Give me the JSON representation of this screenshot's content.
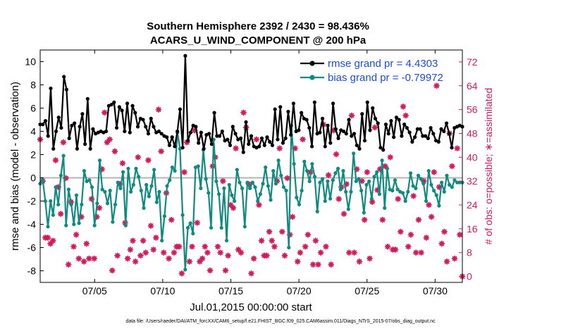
{
  "chart_data": {
    "type": "line",
    "title": "Southern Hemisphere 2392 / 2430 = 98.436%",
    "subtitle": "ACARS_U_WIND_COMPONENT @ 200 hPa",
    "xlabel": "Jul.01,2015 00:00:00 start",
    "ylabel": "rmse and bias (model - observation)",
    "ylabel_right": "# of obs: o=possible; ∗=assimilated",
    "footnote": "data file: /Users/raeder/DAI/ATM_forcXX/CAM6_setup/f.e21.FHIST_BGC.f09_025.CAM6assim.011/Diags_NTrS_2015-07/obs_diag_output.nc",
    "x_range": [
      1.0,
      32.0
    ],
    "ylim": [
      -9,
      11
    ],
    "ylim_right": [
      -2,
      76
    ],
    "x_ticks": [
      5,
      10,
      15,
      20,
      25,
      30
    ],
    "x_tick_labels": [
      "07/05",
      "07/10",
      "07/15",
      "07/20",
      "07/25",
      "07/30"
    ],
    "y_ticks": [
      -8,
      -6,
      -4,
      -2,
      0,
      2,
      4,
      6,
      8,
      10
    ],
    "y_tick_labels": [
      "-8",
      "-6",
      "-4",
      "-2",
      "0",
      "2",
      "4",
      "6",
      "8",
      "10"
    ],
    "y_right_ticks": [
      0,
      8,
      16,
      24,
      32,
      40,
      48,
      56,
      64,
      72
    ],
    "y_right_tick_labels": [
      "0",
      "8",
      "16",
      "24",
      "32",
      "40",
      "48",
      "56",
      "64",
      "72"
    ],
    "colors": {
      "rmse": "#000000",
      "bias": "#0f8a80",
      "obs": "#d01a5a",
      "zero_line": "#b4b4b4",
      "legend_text": "#1a4cdf"
    },
    "series": [
      {
        "name": "rmse grand pr = 4.4303",
        "axis": "left",
        "values": [
          4.6,
          4.6,
          4.9,
          3.6,
          7.7,
          2.5,
          4.0,
          5.2,
          4.3,
          8.7,
          7.6,
          3.4,
          4.5,
          4.7,
          2.5,
          4.4,
          5.5,
          2.9,
          6.8,
          2.5,
          4.2,
          3.8,
          3.9,
          4.0,
          3.9,
          4.0,
          6.2,
          6.3,
          6.5,
          4.3,
          6.1,
          5.8,
          4.0,
          6.4,
          3.9,
          6.2,
          5.6,
          4.4,
          5.1,
          5.0,
          4.4,
          3.8,
          5.1,
          4.4,
          3.9,
          4.0,
          3.8,
          3.6,
          3.5,
          2.8,
          3.5,
          2.7,
          4.0,
          5.9,
          2.6,
          10.5,
          3.2,
          3.9,
          4.5,
          4.4,
          3.0,
          3.9,
          2.5,
          3.7,
          3.8,
          2.9,
          5.6,
          3.6,
          3.6,
          4.0,
          3.2,
          3.3,
          2.8,
          4.4,
          3.8,
          3.3,
          3.4,
          2.2,
          4.8,
          2.9,
          3.6,
          2.7,
          2.6,
          2.7,
          3.4,
          2.8,
          3.5,
          3.1,
          2.8,
          5.9,
          3.3,
          6.1,
          3.0,
          3.4,
          5.7,
          3.7,
          6.4,
          4.0,
          4.1,
          5.6,
          5.1,
          5.0,
          4.3,
          2.7,
          6.5,
          3.8,
          3.9,
          5.1,
          2.7,
          4.5,
          3.0,
          6.4,
          4.2,
          3.4,
          4.1,
          4.0,
          3.8,
          5.0,
          3.6,
          3.8,
          2.8,
          2.5,
          5.5,
          3.2,
          6.5,
          4.1,
          6.0,
          5.1,
          4.7,
          2.6,
          2.4,
          4.6,
          3.8,
          4.9,
          3.5,
          5.2,
          5.0,
          3.6,
          4.6,
          4.3,
          3.9,
          3.1,
          3.5,
          4.2,
          4.2,
          3.6,
          3.6,
          3.4,
          4.3,
          3.8,
          3.2,
          3.1,
          4.2,
          4.0,
          4.7,
          3.8,
          2.6,
          4.3,
          4.4,
          4.5,
          4.4
        ]
      },
      {
        "name": "bias grand pr = -0.79972",
        "axis": "left",
        "values": [
          -0.5,
          -0.2,
          -2.0,
          -4.2,
          -2.0,
          -3.2,
          -0.8,
          -2.3,
          0.2,
          1.9,
          -4.1,
          -1.0,
          -2.3,
          -4.0,
          -1.5,
          -3.9,
          -2.3,
          0.6,
          -0.3,
          -0.2,
          -0.8,
          -4.1,
          -2.2,
          1.5,
          -1.0,
          -1.2,
          -2.2,
          -1.1,
          -3.8,
          -2.3,
          -0.4,
          -0.9,
          0.5,
          -4.1,
          0.8,
          -1.2,
          -0.6,
          0.8,
          0.1,
          -1.1,
          -2.6,
          -0.6,
          -1.6,
          -0.7,
          0.7,
          -2.1,
          -1.2,
          -5.4,
          -3.3,
          -0.7,
          -0.2,
          0.9,
          0.6,
          3.9,
          2.5,
          -3.2,
          -7.9,
          -4.3,
          -3.9,
          -4.8,
          0.9,
          1.0,
          -0.9,
          2.4,
          -0.1,
          -1.3,
          -4.3,
          3.3,
          -0.3,
          -1.4,
          -4.3,
          -0.9,
          -5.4,
          -0.6,
          -1.5,
          -2.0,
          0.7,
          -0.4,
          -0.9,
          -4.2,
          -0.4,
          -0.9,
          -0.4,
          -0.8,
          -2.0,
          -1.4,
          -0.5,
          0.9,
          -0.7,
          -1.9,
          0.6,
          -0.5,
          1.5,
          0.2,
          -0.8,
          -1.1,
          -6.0,
          4.5,
          1.2,
          -1.7,
          -2.3,
          -1.1,
          1.4,
          0.6,
          -0.3,
          1.2,
          0.1,
          -2.9,
          -0.4,
          -0.1,
          -2.0,
          -0.3,
          -1.8,
          -0.2,
          0.4,
          0.8,
          -1.0,
          0.6,
          -1.2,
          -2.7,
          -1.2,
          2.1,
          -0.3,
          -0.1,
          -1.1,
          -3.0,
          -0.6,
          -0.3,
          -1.8,
          0.1,
          0.5,
          -1.4,
          1.5,
          -2.6,
          0.8,
          -1.0,
          -1.1,
          -0.2,
          -1.0,
          -1.2,
          -1.3,
          -2.0,
          -1.2,
          0.4,
          -0.7,
          -0.9,
          0.2,
          -0.1,
          -0.5,
          -2.0,
          0.6,
          -0.6,
          -1.1,
          -1.5,
          -2.4,
          -0.4,
          -1.2,
          0.2,
          -0.6,
          -0.8,
          -0.2,
          -0.4,
          -0.4,
          -0.4
        ]
      },
      {
        "name": "# of obs possible",
        "axis": "right",
        "marker": "o",
        "values": [
          46,
          32,
          13,
          13,
          11,
          12,
          39,
          30,
          21,
          45,
          33,
          4,
          25,
          10,
          14,
          6,
          20,
          5,
          11,
          6,
          26,
          6,
          20,
          23,
          36,
          55,
          45,
          46,
          2,
          42,
          7,
          31,
          38,
          18,
          6,
          9,
          12,
          5,
          40,
          7,
          12,
          8,
          39,
          17,
          9,
          13,
          56,
          42,
          8,
          28,
          6,
          19,
          8,
          10,
          10,
          1,
          35,
          45,
          5,
          10,
          49,
          18,
          5,
          6,
          10,
          8,
          2,
          37,
          40,
          10,
          8,
          32,
          2,
          7,
          24,
          23,
          43,
          9,
          8,
          55,
          50,
          31,
          1,
          6,
          46,
          24,
          12,
          7,
          7,
          15,
          12,
          10,
          32,
          43,
          15,
          7,
          33,
          14,
          20,
          43,
          5,
          8,
          46,
          10,
          14,
          35,
          4,
          12,
          4,
          8,
          51,
          10,
          34,
          4,
          49,
          41,
          26,
          30,
          21,
          31,
          8,
          54,
          8,
          36,
          5,
          32,
          19,
          35,
          6,
          25,
          50,
          29,
          36,
          19,
          37,
          10,
          40,
          9,
          9,
          26,
          15,
          57,
          54,
          10,
          14,
          27,
          8,
          19,
          8,
          32,
          13,
          24,
          20,
          35,
          64,
          30,
          11,
          15,
          5,
          48,
          37,
          6,
          43,
          14,
          0
        ]
      },
      {
        "name": "# of obs assimilated",
        "axis": "right",
        "marker": "*",
        "values": [
          46,
          32,
          13,
          13,
          11,
          12,
          39,
          30,
          21,
          45,
          33,
          4,
          25,
          10,
          14,
          6,
          20,
          5,
          11,
          6,
          26,
          6,
          20,
          23,
          36,
          55,
          45,
          46,
          2,
          42,
          7,
          31,
          38,
          18,
          6,
          9,
          12,
          5,
          40,
          7,
          12,
          8,
          39,
          17,
          9,
          13,
          56,
          42,
          8,
          28,
          6,
          19,
          8,
          10,
          10,
          1,
          35,
          45,
          5,
          10,
          49,
          18,
          5,
          6,
          10,
          8,
          2,
          37,
          40,
          10,
          8,
          32,
          2,
          7,
          24,
          23,
          43,
          9,
          8,
          55,
          50,
          31,
          1,
          6,
          46,
          24,
          12,
          7,
          7,
          15,
          12,
          10,
          32,
          43,
          15,
          7,
          33,
          14,
          20,
          43,
          5,
          8,
          46,
          10,
          14,
          35,
          4,
          12,
          4,
          8,
          51,
          10,
          34,
          4,
          49,
          41,
          26,
          30,
          21,
          31,
          8,
          54,
          8,
          36,
          5,
          32,
          19,
          35,
          6,
          25,
          50,
          29,
          36,
          19,
          37,
          10,
          40,
          9,
          9,
          26,
          15,
          57,
          54,
          10,
          14,
          27,
          8,
          19,
          8,
          32,
          13,
          24,
          20,
          35,
          64,
          30,
          11,
          15,
          5,
          48,
          37,
          6,
          43,
          14,
          0
        ]
      }
    ]
  }
}
